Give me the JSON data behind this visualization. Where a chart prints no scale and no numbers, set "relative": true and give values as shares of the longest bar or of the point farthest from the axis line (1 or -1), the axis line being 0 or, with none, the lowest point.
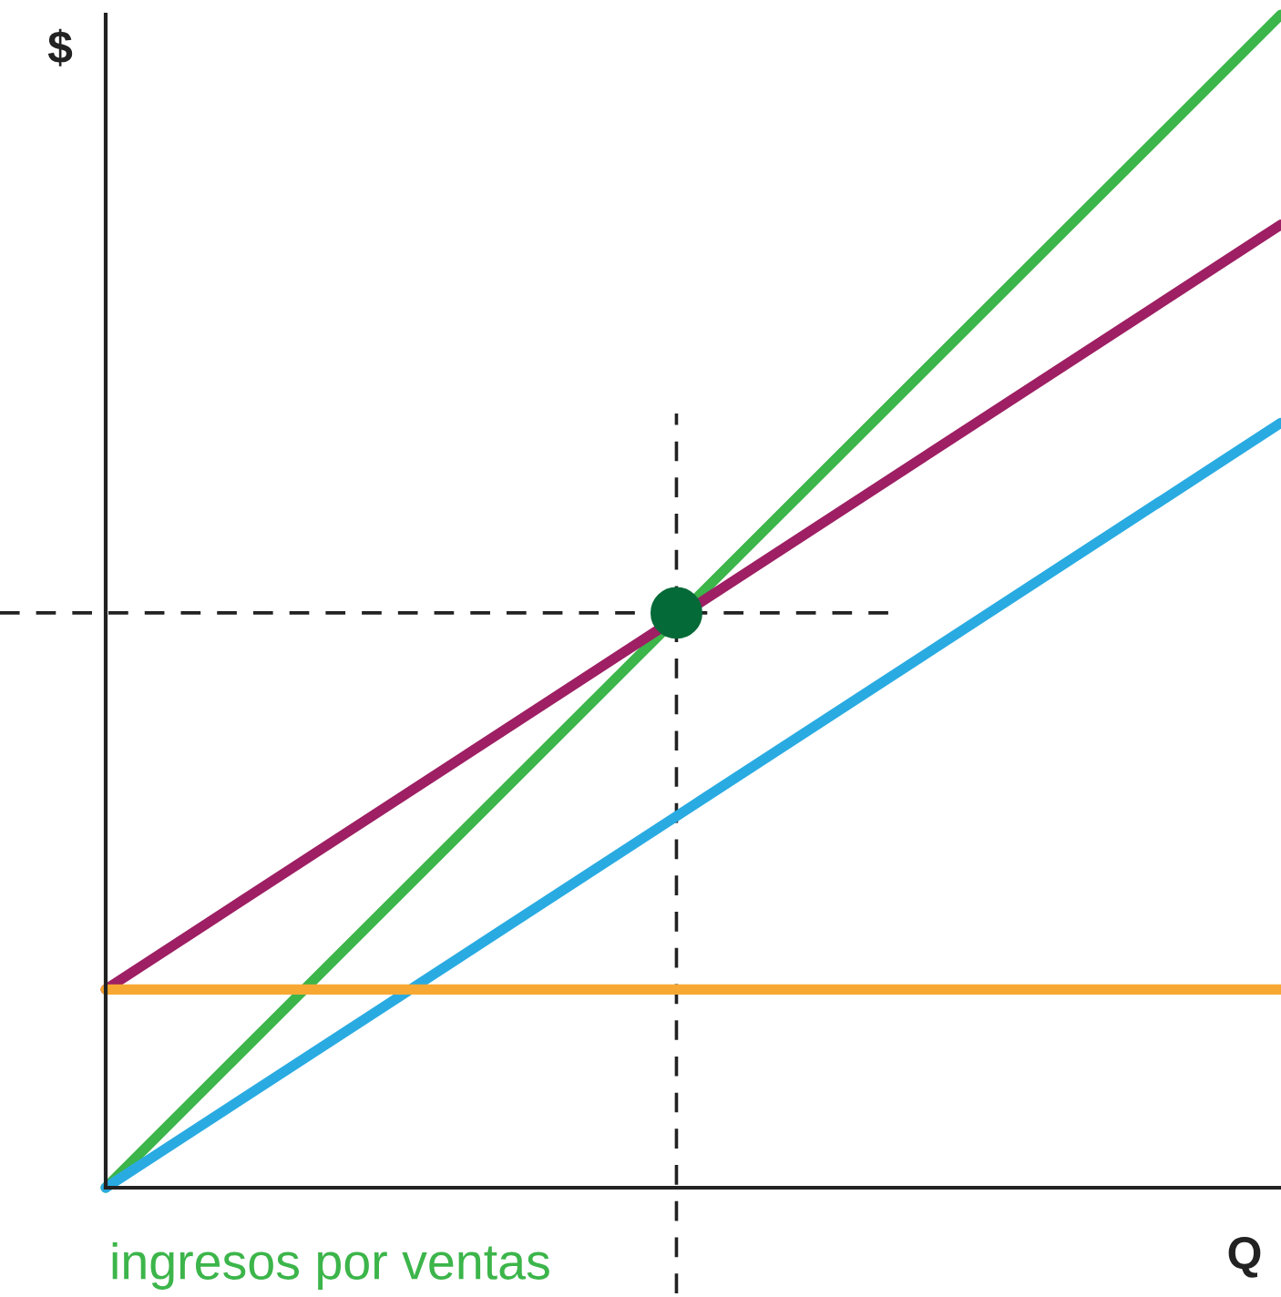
{
  "chart_data": {
    "type": "line",
    "relative": true,
    "xlabel": "Q",
    "ylabel": "$",
    "categories": [
      null,
      null,
      null
    ],
    "series": [
      {
        "name": "ingresos por ventas",
        "color": "#3cb54a",
        "values": [
          0,
          null,
          1
        ]
      },
      {
        "color": "#9e1f63",
        "values": [
          0.169,
          null,
          0.821
        ]
      },
      {
        "color": "#29abe2",
        "values": [
          0,
          0.326,
          0.652
        ]
      },
      {
        "color": "#f7a833",
        "values": [
          0.169,
          0.169,
          0.169
        ]
      }
    ],
    "ref_lines": [
      {
        "axis": "y",
        "value": 0.49,
        "color": "#222222",
        "line_style": "dashed"
      }
    ],
    "legend": false,
    "grid": false
  }
}
